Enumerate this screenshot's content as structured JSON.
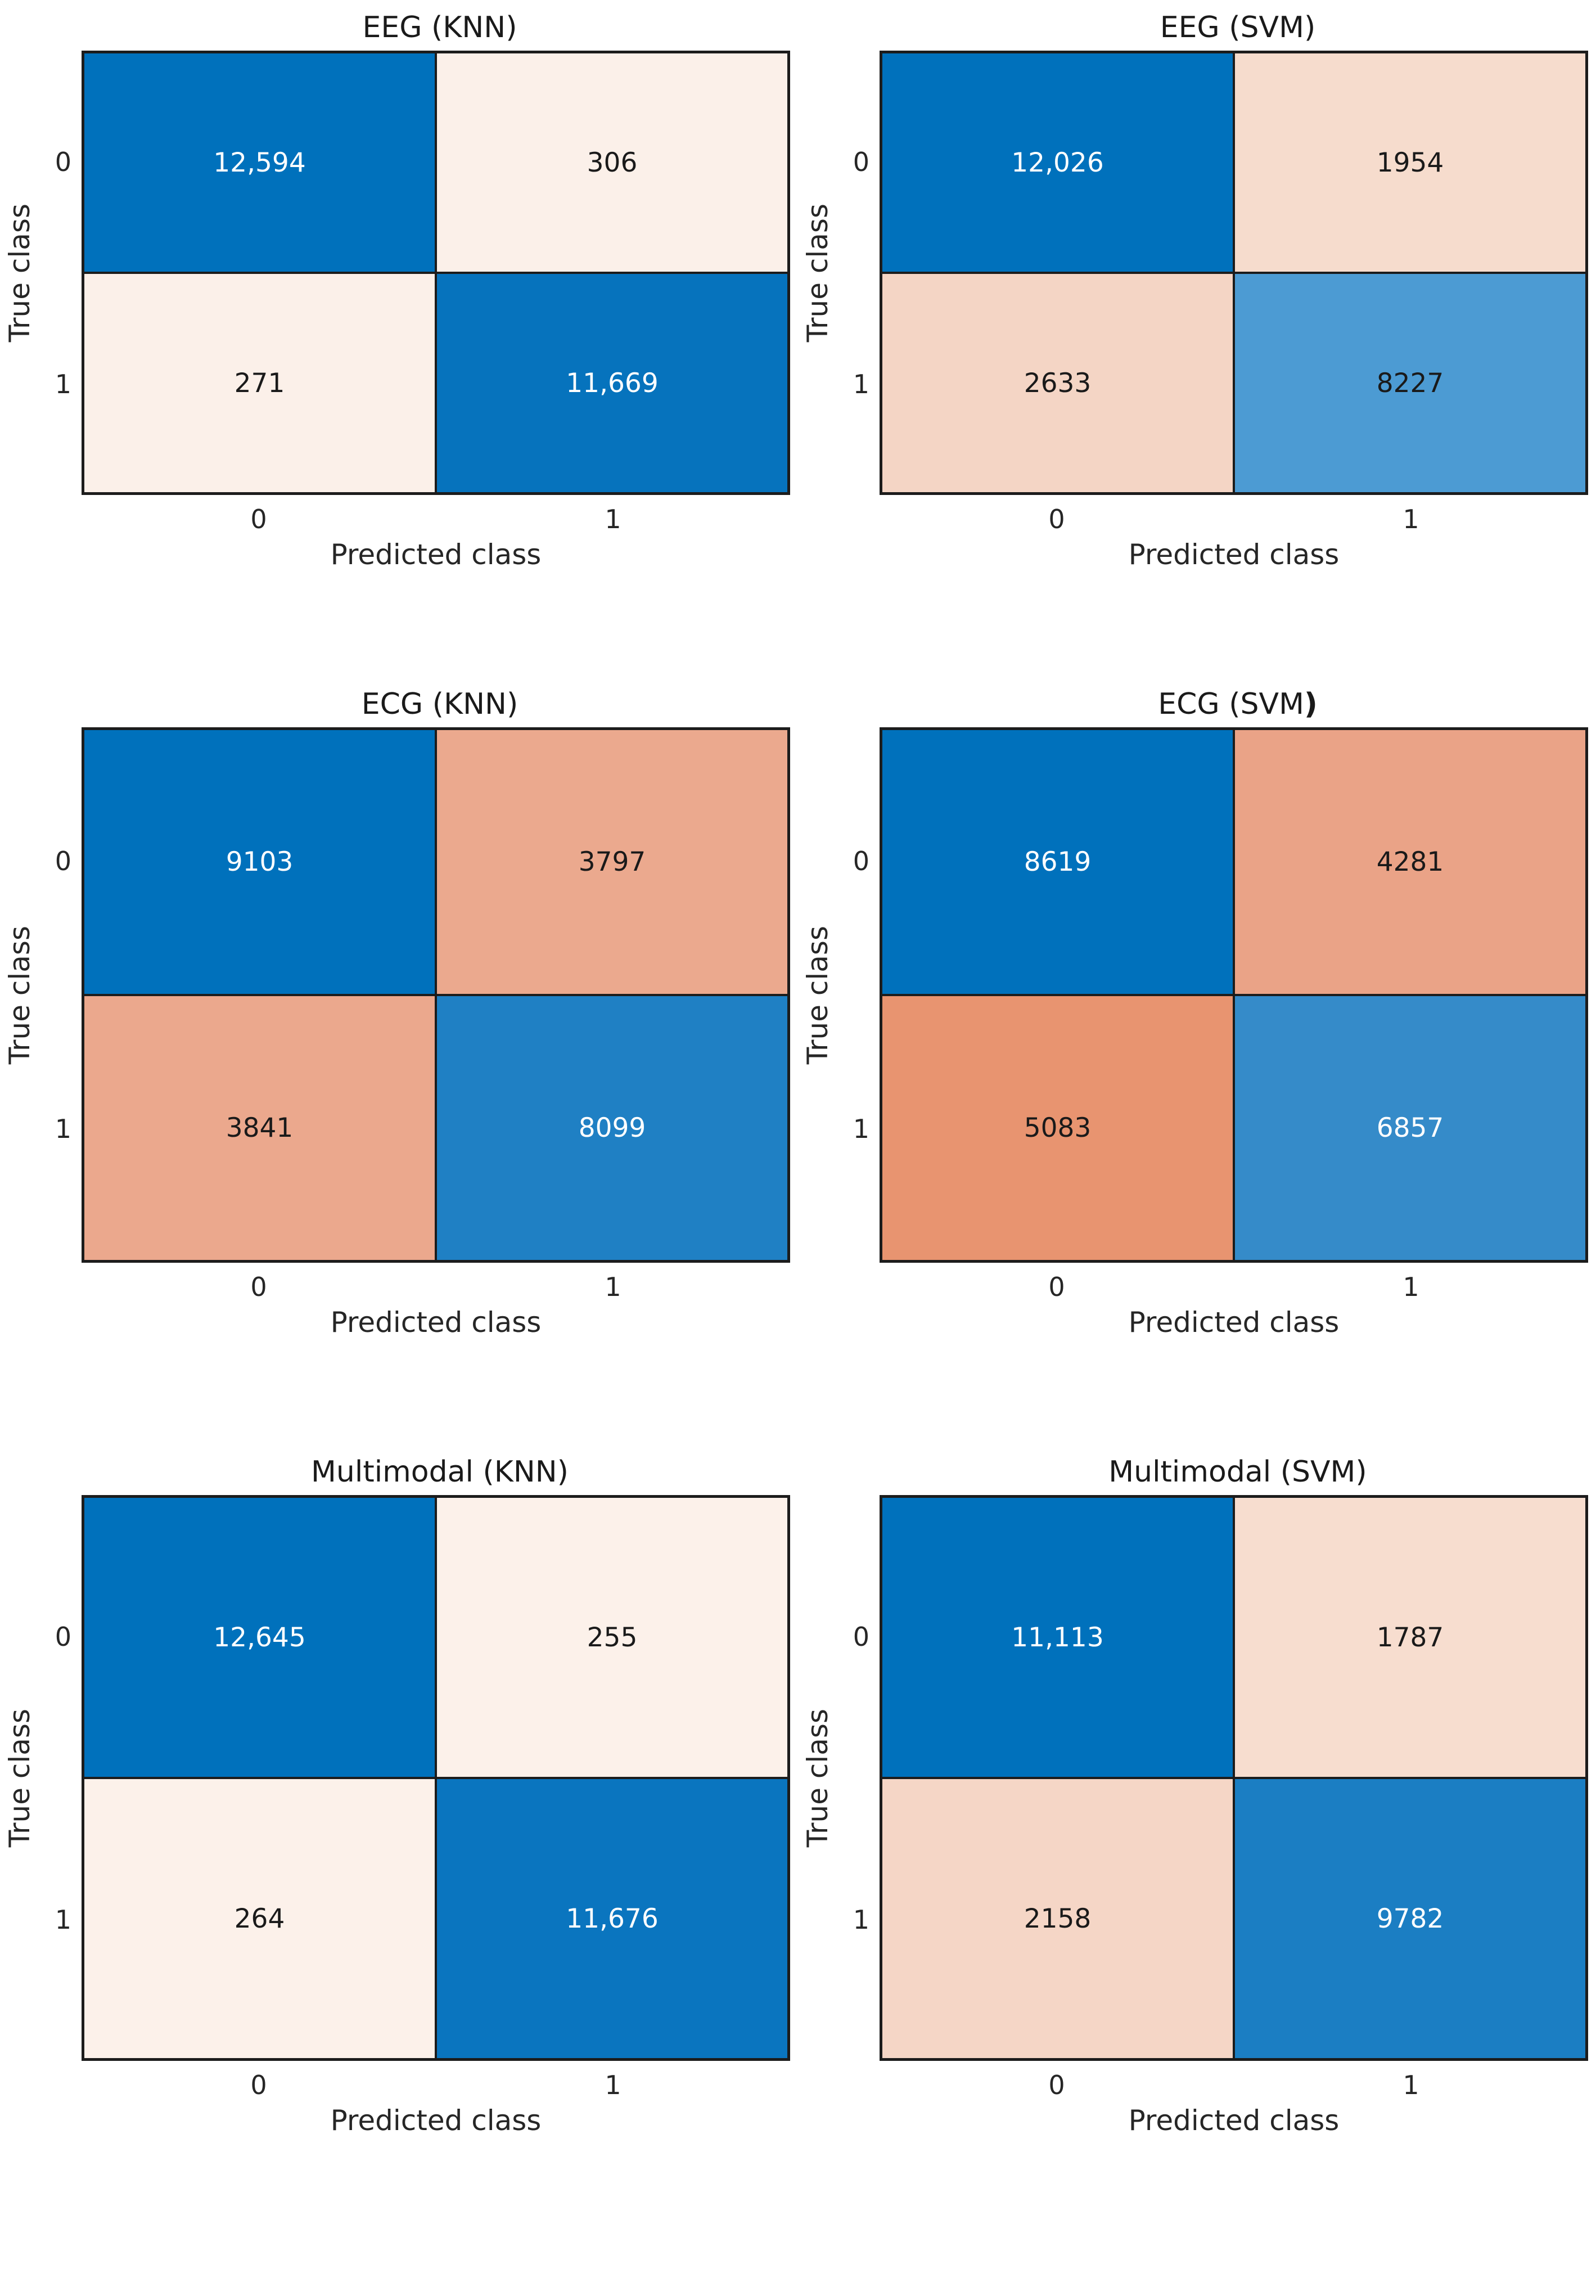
{
  "figure": {
    "xlabel": "Predicted class",
    "ylabel": "True class",
    "xticks": [
      "0",
      "1"
    ],
    "yticks": [
      "0",
      "1"
    ]
  },
  "panels": [
    {
      "title": "EEG (KNN)",
      "title_bold_suffix": "",
      "cells": [
        [
          {
            "v": "12,594",
            "bg": "#0071bc",
            "fg": "#ffffff"
          },
          {
            "v": "306",
            "bg": "#fbf0e9",
            "fg": "#1a1a1a"
          }
        ],
        [
          {
            "v": "271",
            "bg": "#fbf0e9",
            "fg": "#1a1a1a"
          },
          {
            "v": "11,669",
            "bg": "#0673bd",
            "fg": "#ffffff"
          }
        ]
      ]
    },
    {
      "title": "EEG (SVM)",
      "title_bold_suffix": "",
      "cells": [
        [
          {
            "v": "12,026",
            "bg": "#0071bc",
            "fg": "#ffffff"
          },
          {
            "v": "1954",
            "bg": "#f6dccd",
            "fg": "#1a1a1a"
          }
        ],
        [
          {
            "v": "2633",
            "bg": "#f4d5c5",
            "fg": "#1a1a1a"
          },
          {
            "v": "8227",
            "bg": "#4c9bd3",
            "fg": "#1a1a1a"
          }
        ]
      ]
    },
    {
      "title": "ECG (KNN)",
      "title_bold_suffix": "",
      "cells": [
        [
          {
            "v": "9103",
            "bg": "#0071bc",
            "fg": "#ffffff"
          },
          {
            "v": "3797",
            "bg": "#eba98e",
            "fg": "#1a1a1a"
          }
        ],
        [
          {
            "v": "3841",
            "bg": "#eba88d",
            "fg": "#1a1a1a"
          },
          {
            "v": "8099",
            "bg": "#1f80c4",
            "fg": "#ffffff"
          }
        ]
      ]
    },
    {
      "title": "ECG (SVM",
      "title_bold_suffix": ")",
      "cells": [
        [
          {
            "v": "8619",
            "bg": "#0071bc",
            "fg": "#ffffff"
          },
          {
            "v": "4281",
            "bg": "#eaa387",
            "fg": "#1a1a1a"
          }
        ],
        [
          {
            "v": "5083",
            "bg": "#e89470",
            "fg": "#1a1a1a"
          },
          {
            "v": "6857",
            "bg": "#358bc9",
            "fg": "#ffffff"
          }
        ]
      ]
    },
    {
      "title": "Multimodal (KNN)",
      "title_bold_suffix": "",
      "cells": [
        [
          {
            "v": "12,645",
            "bg": "#0071bc",
            "fg": "#ffffff"
          },
          {
            "v": "255",
            "bg": "#fcf1ea",
            "fg": "#1a1a1a"
          }
        ],
        [
          {
            "v": "264",
            "bg": "#fcf1ea",
            "fg": "#1a1a1a"
          },
          {
            "v": "11,676",
            "bg": "#0a75bf",
            "fg": "#ffffff"
          }
        ]
      ]
    },
    {
      "title": "Multimodal (SVM)",
      "title_bold_suffix": "",
      "cells": [
        [
          {
            "v": "11,113",
            "bg": "#0071bc",
            "fg": "#ffffff"
          },
          {
            "v": "1787",
            "bg": "#f7ddcf",
            "fg": "#1a1a1a"
          }
        ],
        [
          {
            "v": "2158",
            "bg": "#f5d6c6",
            "fg": "#1a1a1a"
          },
          {
            "v": "9782",
            "bg": "#1b7ec3",
            "fg": "#ffffff"
          }
        ]
      ]
    }
  ],
  "chart_data": [
    {
      "type": "heatmap",
      "title": "EEG (KNN)",
      "xlabel": "Predicted class",
      "ylabel": "True class",
      "x_categories": [
        "0",
        "1"
      ],
      "y_categories": [
        "0",
        "1"
      ],
      "values": [
        [
          12594,
          306
        ],
        [
          271,
          11669
        ]
      ],
      "colormap": "blue diagonal (correct), orange off-diagonal (errors), shade scales with count",
      "grid": false,
      "legend": "none"
    },
    {
      "type": "heatmap",
      "title": "EEG (SVM)",
      "xlabel": "Predicted class",
      "ylabel": "True class",
      "x_categories": [
        "0",
        "1"
      ],
      "y_categories": [
        "0",
        "1"
      ],
      "values": [
        [
          12026,
          1954
        ],
        [
          2633,
          8227
        ]
      ],
      "colormap": "blue diagonal (correct), orange off-diagonal (errors), shade scales with count",
      "grid": false,
      "legend": "none"
    },
    {
      "type": "heatmap",
      "title": "ECG (KNN)",
      "xlabel": "Predicted class",
      "ylabel": "True class",
      "x_categories": [
        "0",
        "1"
      ],
      "y_categories": [
        "0",
        "1"
      ],
      "values": [
        [
          9103,
          3797
        ],
        [
          3841,
          8099
        ]
      ],
      "colormap": "blue diagonal (correct), orange off-diagonal (errors), shade scales with count",
      "grid": false,
      "legend": "none"
    },
    {
      "type": "heatmap",
      "title": "ECG (SVM)",
      "xlabel": "Predicted class",
      "ylabel": "True class",
      "x_categories": [
        "0",
        "1"
      ],
      "y_categories": [
        "0",
        "1"
      ],
      "values": [
        [
          8619,
          4281
        ],
        [
          5083,
          6857
        ]
      ],
      "colormap": "blue diagonal (correct), orange off-diagonal (errors), shade scales with count",
      "grid": false,
      "legend": "none"
    },
    {
      "type": "heatmap",
      "title": "Multimodal (KNN)",
      "xlabel": "Predicted class",
      "ylabel": "True class",
      "x_categories": [
        "0",
        "1"
      ],
      "y_categories": [
        "0",
        "1"
      ],
      "values": [
        [
          12645,
          255
        ],
        [
          264,
          11676
        ]
      ],
      "colormap": "blue diagonal (correct), orange off-diagonal (errors), shade scales with count",
      "grid": false,
      "legend": "none"
    },
    {
      "type": "heatmap",
      "title": "Multimodal (SVM)",
      "xlabel": "Predicted class",
      "ylabel": "True class",
      "x_categories": [
        "0",
        "1"
      ],
      "y_categories": [
        "0",
        "1"
      ],
      "values": [
        [
          11113,
          1787
        ],
        [
          2158,
          9782
        ]
      ],
      "colormap": "blue diagonal (correct), orange off-diagonal (errors), shade scales with count",
      "grid": false,
      "legend": "none"
    }
  ]
}
